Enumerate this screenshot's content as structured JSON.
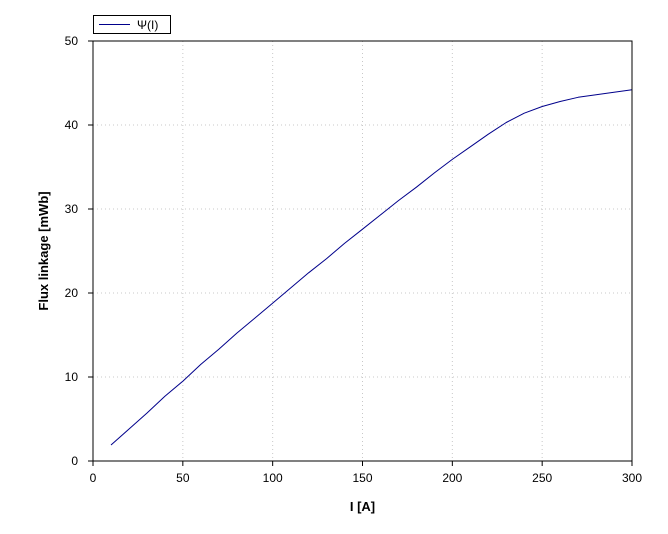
{
  "chart_data": {
    "type": "line",
    "xlabel": "I [A]",
    "ylabel": "Flux linkage [mWb]",
    "xlim": [
      0,
      300
    ],
    "ylim": [
      0,
      50
    ],
    "xticks": [
      0,
      50,
      100,
      150,
      200,
      250,
      300
    ],
    "yticks": [
      0,
      10,
      20,
      30,
      40,
      50
    ],
    "grid": true,
    "legend_position": "top-left",
    "series": [
      {
        "name": "Ψ(I)",
        "color": "#00008b",
        "x": [
          10,
          20,
          30,
          40,
          50,
          60,
          70,
          80,
          90,
          100,
          110,
          120,
          130,
          140,
          150,
          160,
          170,
          180,
          190,
          200,
          210,
          220,
          230,
          240,
          250,
          260,
          270,
          280,
          290,
          300
        ],
        "y": [
          1.9,
          3.8,
          5.7,
          7.7,
          9.5,
          11.5,
          13.3,
          15.2,
          17.0,
          18.8,
          20.6,
          22.4,
          24.1,
          25.9,
          27.6,
          29.3,
          31.0,
          32.6,
          34.3,
          35.9,
          37.4,
          38.9,
          40.3,
          41.4,
          42.2,
          42.8,
          43.3,
          43.6,
          43.9,
          44.2
        ]
      }
    ]
  }
}
